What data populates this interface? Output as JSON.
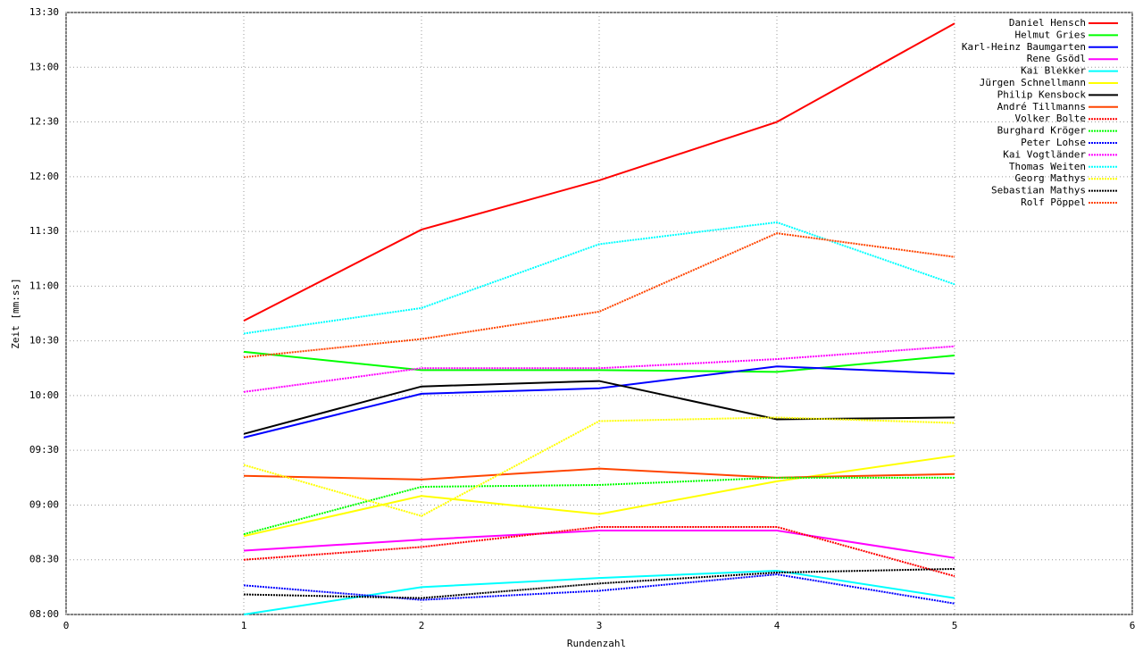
{
  "chart_data": {
    "type": "line",
    "xlabel": "Rundenzahl",
    "ylabel": "Zeit [mm:ss]",
    "x": [
      1,
      2,
      3,
      4,
      5
    ],
    "xlim": [
      0,
      6
    ],
    "xticks": [
      0,
      1,
      2,
      3,
      4,
      5,
      6
    ],
    "ylim": [
      480,
      810
    ],
    "yticks": [
      {
        "value": 480,
        "label": "08:00"
      },
      {
        "value": 510,
        "label": "08:30"
      },
      {
        "value": 540,
        "label": "09:00"
      },
      {
        "value": 570,
        "label": "09:30"
      },
      {
        "value": 600,
        "label": "10:00"
      },
      {
        "value": 630,
        "label": "10:30"
      },
      {
        "value": 660,
        "label": "11:00"
      },
      {
        "value": 690,
        "label": "11:30"
      },
      {
        "value": 720,
        "label": "12:00"
      },
      {
        "value": 750,
        "label": "12:30"
      },
      {
        "value": 780,
        "label": "13:00"
      },
      {
        "value": 810,
        "label": "13:30"
      }
    ],
    "grid": true,
    "legend": "top-right",
    "series": [
      {
        "name": "Daniel Hensch",
        "color": "#ff0000",
        "style": "solid",
        "values": [
          641,
          691,
          718,
          750,
          804
        ]
      },
      {
        "name": "Helmut Gries",
        "color": "#00ff00",
        "style": "solid",
        "values": [
          624,
          614,
          614,
          613,
          622
        ]
      },
      {
        "name": "Karl-Heinz Baumgarten",
        "color": "#0000ff",
        "style": "solid",
        "values": [
          577,
          601,
          604,
          616,
          612
        ]
      },
      {
        "name": "Rene Gsödl",
        "color": "#ff00ff",
        "style": "solid",
        "values": [
          515,
          521,
          526,
          526,
          511
        ]
      },
      {
        "name": "Kai Blekker",
        "color": "#00ffff",
        "style": "solid",
        "values": [
          480,
          495,
          500,
          504,
          489
        ]
      },
      {
        "name": "Jürgen Schnellmann",
        "color": "#ffff00",
        "style": "solid",
        "values": [
          523,
          545,
          535,
          553,
          567
        ]
      },
      {
        "name": "Philip Kensbock",
        "color": "#000000",
        "style": "solid",
        "values": [
          579,
          605,
          608,
          587,
          588
        ]
      },
      {
        "name": "André Tillmanns",
        "color": "#ff4500",
        "style": "solid",
        "values": [
          556,
          554,
          560,
          555,
          557
        ]
      },
      {
        "name": "Volker Bolte",
        "color": "#ff0000",
        "style": "dotted",
        "values": [
          510,
          517,
          528,
          528,
          501
        ]
      },
      {
        "name": "Burghard Kröger",
        "color": "#00ff00",
        "style": "dotted",
        "values": [
          524,
          550,
          551,
          555,
          555
        ]
      },
      {
        "name": "Peter Lohse",
        "color": "#0000ff",
        "style": "dotted",
        "values": [
          496,
          488,
          493,
          502,
          486
        ]
      },
      {
        "name": "Kai Vogtländer",
        "color": "#ff00ff",
        "style": "dotted",
        "values": [
          602,
          615,
          615,
          620,
          627
        ]
      },
      {
        "name": "Thomas Weiten",
        "color": "#00ffff",
        "style": "dotted",
        "values": [
          634,
          648,
          683,
          695,
          661
        ]
      },
      {
        "name": "Georg Mathys",
        "color": "#ffff00",
        "style": "dotted",
        "values": [
          562,
          534,
          586,
          588,
          585
        ]
      },
      {
        "name": "Sebastian Mathys",
        "color": "#000000",
        "style": "dotted",
        "values": [
          491,
          489,
          497,
          503,
          505
        ]
      },
      {
        "name": "Rolf Pöppel",
        "color": "#ff4500",
        "style": "dotted",
        "values": [
          621,
          631,
          646,
          689,
          676
        ]
      }
    ]
  }
}
